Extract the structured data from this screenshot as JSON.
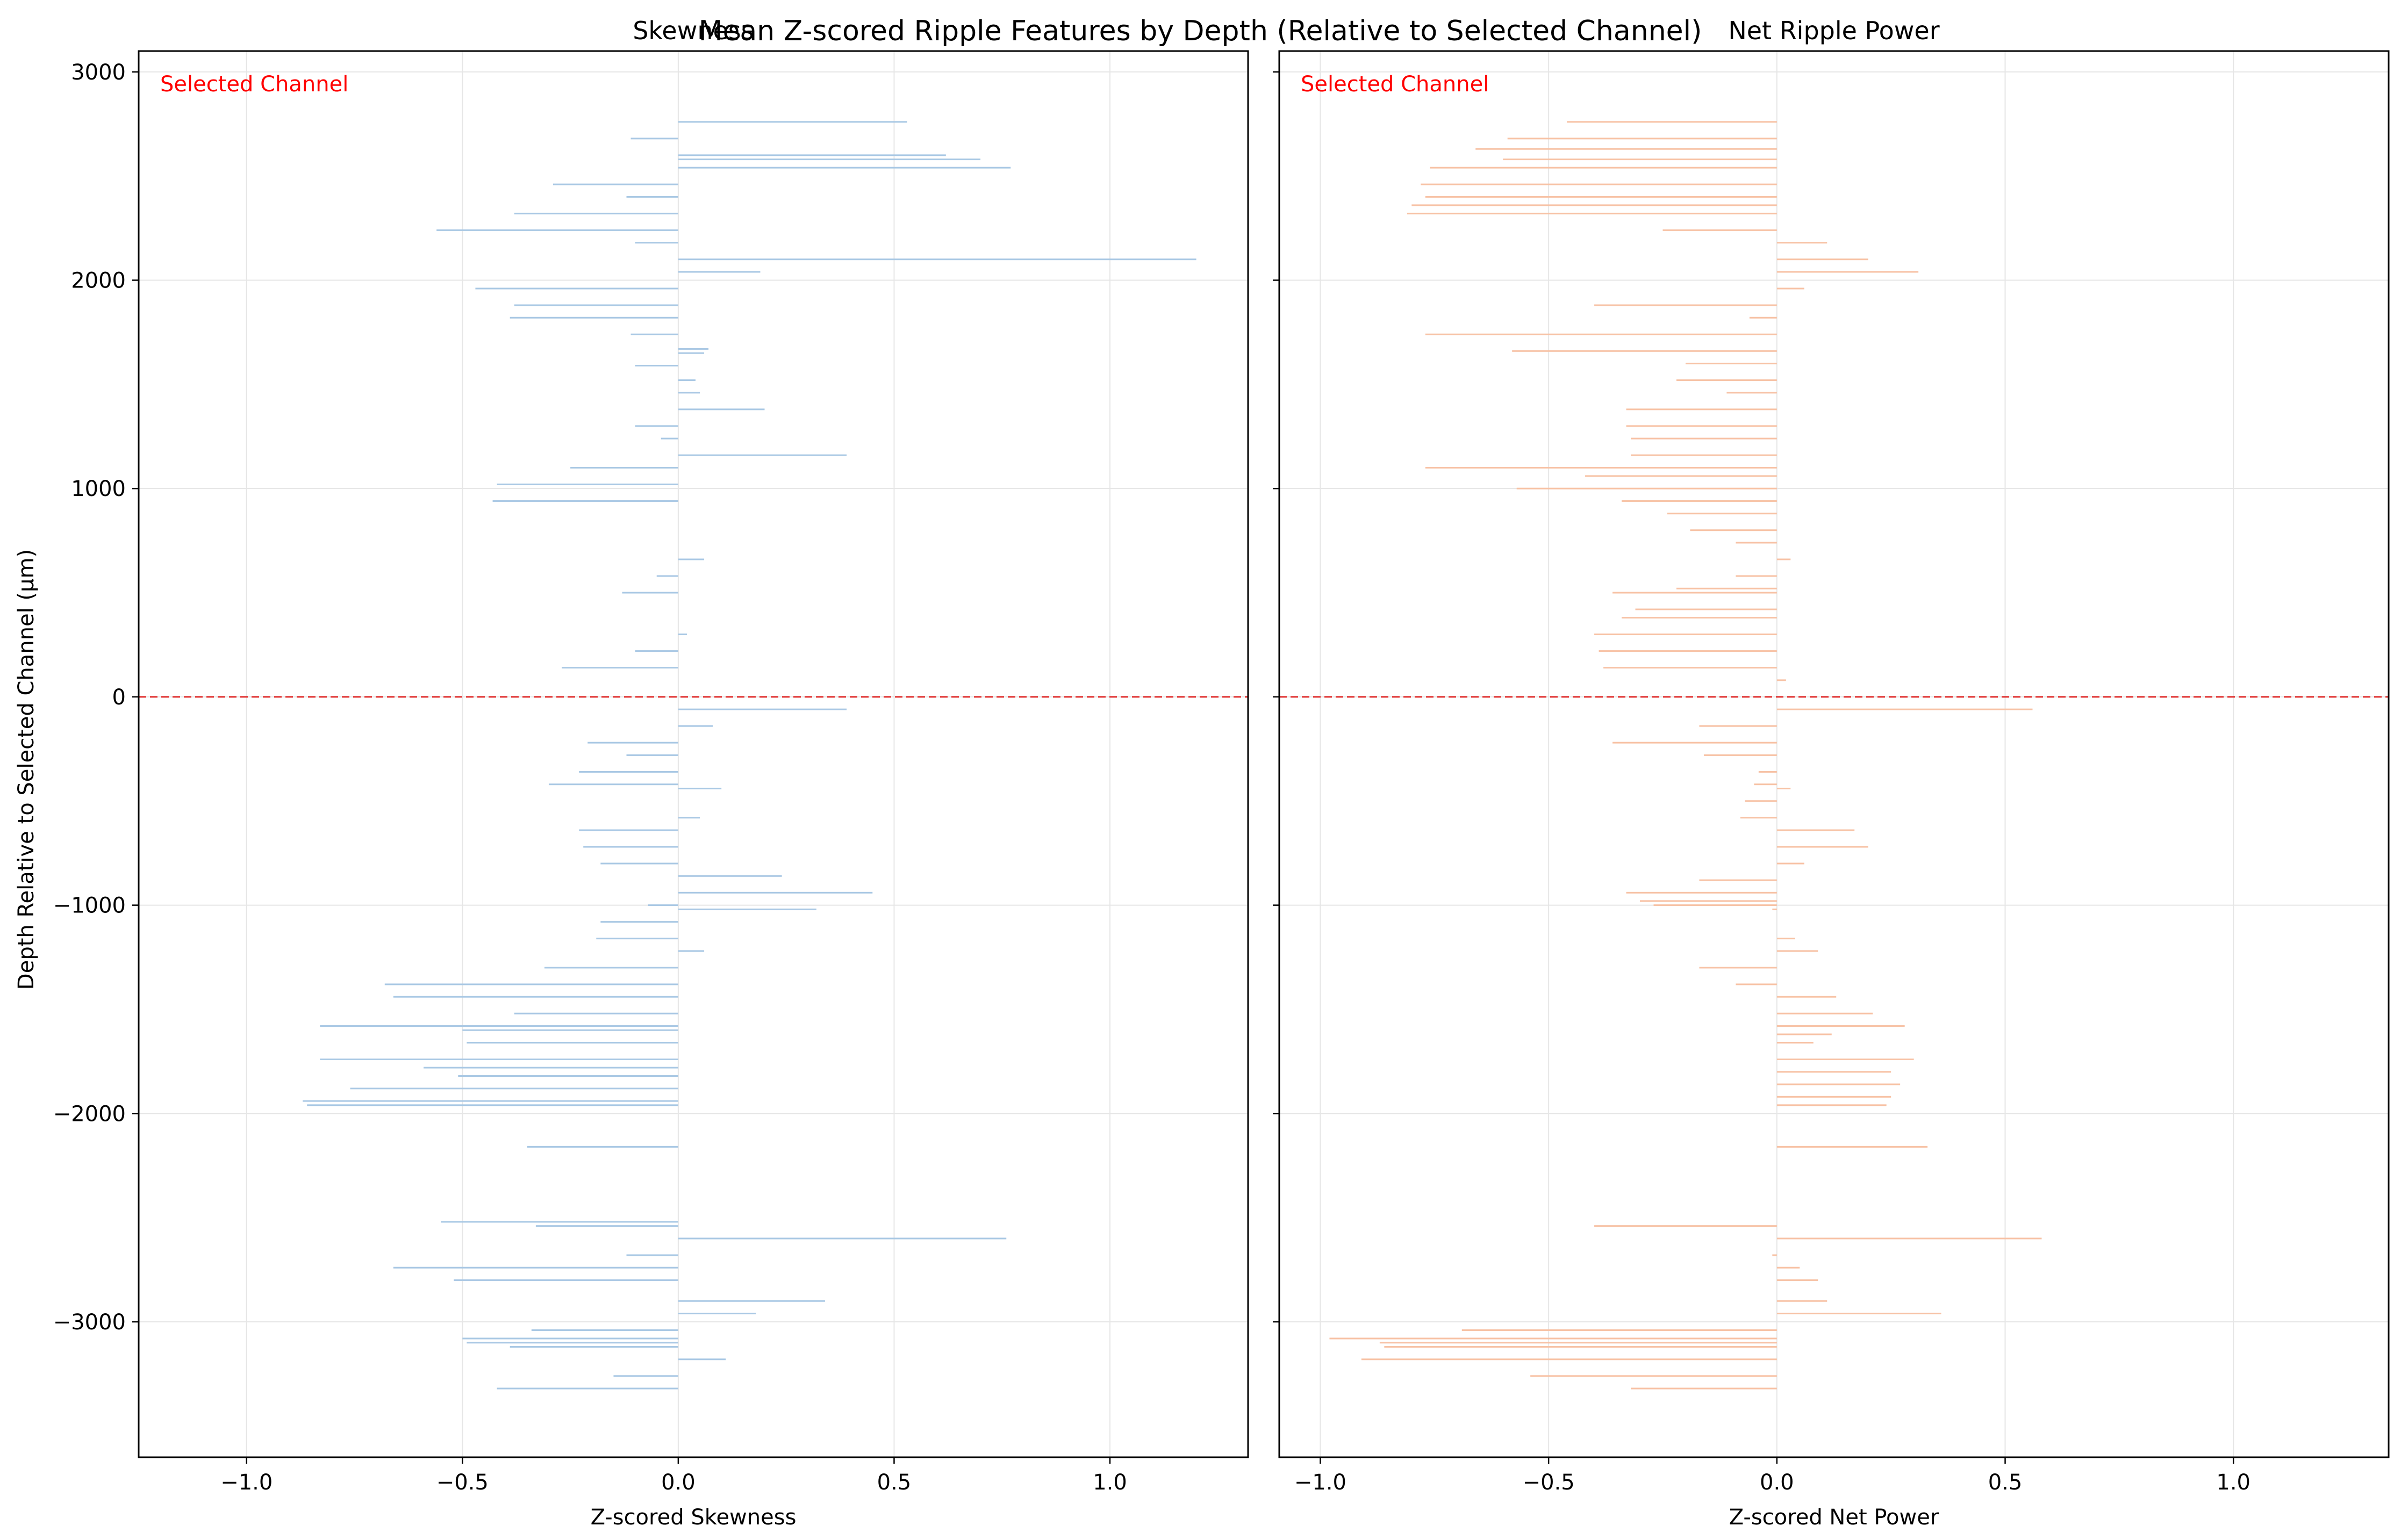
{
  "figure": {
    "suptitle": "Mean Z-scored Ripple Features by Depth (Relative to Selected Channel)",
    "ylabel": "Depth Relative to Selected Channel (μm)",
    "selected_label": "Selected Channel",
    "colors": {
      "skewness_bar": "#a9c8e4",
      "power_bar": "#f7c2a5",
      "selected_line": "#e0302f",
      "selected_text": "#ff0000",
      "grid": "#e6e6e6"
    }
  },
  "chart_data": [
    {
      "type": "bar",
      "orientation": "horizontal",
      "title": "Skewness",
      "xlabel": "Z-scored Skewness",
      "ylabel": "Depth Relative to Selected Channel (μm)",
      "xlim": [
        -1.25,
        1.32
      ],
      "ylim": [
        -3650,
        3100
      ],
      "xticks": [
        -1.0,
        -0.5,
        0.0,
        0.5,
        1.0
      ],
      "xtick_labels": [
        "−1.0",
        "−0.5",
        "0.0",
        "0.5",
        "1.0"
      ],
      "yticks": [
        3000,
        2000,
        1000,
        0,
        -1000,
        -2000,
        -3000
      ],
      "ytick_labels": [
        "3000",
        "2000",
        "1000",
        "0",
        "−1000",
        "−2000",
        "−3000"
      ],
      "grid": true,
      "selected_channel_depth": 0,
      "series": [
        {
          "y": [
            2760,
            2680,
            2600,
            2580,
            2540,
            2460,
            2400,
            2320,
            2240,
            2180,
            2100,
            2040,
            1960,
            1880,
            1820,
            1740,
            1670,
            1650,
            1590,
            1520,
            1460,
            1380,
            1300,
            1240,
            1160,
            1100,
            1020,
            940,
            660,
            580,
            500,
            300,
            220,
            140,
            -60,
            -140,
            -220,
            -280,
            -360,
            -420,
            -440,
            -580,
            -640,
            -720,
            -800,
            -860,
            -940,
            -1000,
            -1020,
            -1080,
            -1160,
            -1220,
            -1300,
            -1380,
            -1440,
            -1520,
            -1580,
            -1600,
            -1660,
            -1740,
            -1780,
            -1820,
            -1880,
            -1940,
            -1960,
            -2160,
            -2520,
            -2540,
            -2600,
            -2680,
            -2740,
            -2800,
            -2900,
            -2960,
            -3040,
            -3080,
            -3100,
            -3120,
            -3180,
            -3260,
            -3320
          ],
          "values": [
            0.53,
            -0.11,
            0.62,
            0.7,
            0.77,
            -0.29,
            -0.12,
            -0.38,
            -0.56,
            -0.1,
            1.2,
            0.19,
            -0.47,
            -0.38,
            -0.39,
            -0.11,
            0.07,
            0.06,
            -0.1,
            0.04,
            0.05,
            0.2,
            -0.1,
            -0.04,
            0.39,
            -0.25,
            -0.42,
            -0.43,
            0.06,
            -0.05,
            -0.13,
            0.02,
            -0.1,
            -0.27,
            0.39,
            0.08,
            -0.21,
            -0.12,
            -0.23,
            -0.3,
            0.1,
            0.05,
            -0.23,
            -0.22,
            -0.18,
            0.24,
            0.45,
            -0.07,
            0.32,
            -0.18,
            -0.19,
            0.06,
            -0.31,
            -0.68,
            -0.66,
            -0.38,
            -0.83,
            -0.5,
            -0.49,
            -0.83,
            -0.59,
            -0.51,
            -0.76,
            -0.87,
            -0.86,
            -0.35,
            -0.55,
            -0.33,
            0.76,
            -0.12,
            -0.66,
            -0.52,
            0.34,
            0.18,
            -0.34,
            -0.5,
            -0.49,
            -0.39,
            0.11,
            -0.15,
            -0.42
          ]
        }
      ]
    },
    {
      "type": "bar",
      "orientation": "horizontal",
      "title": "Net Ripple Power",
      "xlabel": "Z-scored Net Power",
      "xlim": [
        -1.09,
        1.34
      ],
      "ylim": [
        -3650,
        3100
      ],
      "xticks": [
        -1.0,
        -0.5,
        0.0,
        0.5,
        1.0
      ],
      "xtick_labels": [
        "−1.0",
        "−0.5",
        "0.0",
        "0.5",
        "1.0"
      ],
      "yticks": [
        3000,
        2000,
        1000,
        0,
        -1000,
        -2000,
        -3000
      ],
      "grid": true,
      "selected_channel_depth": 0,
      "series": [
        {
          "y": [
            2760,
            2680,
            2630,
            2580,
            2540,
            2460,
            2400,
            2360,
            2320,
            2240,
            2180,
            2100,
            2040,
            1960,
            1880,
            1820,
            1740,
            1660,
            1600,
            1520,
            1460,
            1380,
            1300,
            1240,
            1160,
            1100,
            1060,
            1000,
            940,
            880,
            800,
            740,
            660,
            580,
            520,
            500,
            420,
            380,
            300,
            220,
            140,
            80,
            -60,
            -140,
            -220,
            -280,
            -360,
            -420,
            -440,
            -500,
            -580,
            -640,
            -720,
            -800,
            -880,
            -940,
            -980,
            -1000,
            -1020,
            -1160,
            -1220,
            -1300,
            -1380,
            -1440,
            -1520,
            -1580,
            -1620,
            -1660,
            -1740,
            -1800,
            -1860,
            -1920,
            -1960,
            -2160,
            -2540,
            -2600,
            -2680,
            -2740,
            -2800,
            -2900,
            -2960,
            -3040,
            -3080,
            -3100,
            -3120,
            -3180,
            -3260,
            -3320
          ],
          "values": [
            -0.46,
            -0.59,
            -0.66,
            -0.6,
            -0.76,
            -0.78,
            -0.77,
            -0.8,
            -0.81,
            -0.25,
            0.11,
            0.2,
            0.31,
            0.06,
            -0.4,
            -0.06,
            -0.77,
            -0.58,
            -0.2,
            -0.22,
            -0.11,
            -0.33,
            -0.33,
            -0.32,
            -0.32,
            -0.77,
            -0.42,
            -0.57,
            -0.34,
            -0.24,
            -0.19,
            -0.09,
            0.03,
            -0.09,
            -0.22,
            -0.36,
            -0.31,
            -0.34,
            -0.4,
            -0.39,
            -0.38,
            0.02,
            0.56,
            -0.17,
            -0.36,
            -0.16,
            -0.04,
            -0.05,
            0.03,
            -0.07,
            -0.08,
            0.17,
            0.2,
            0.06,
            -0.17,
            -0.33,
            -0.3,
            -0.27,
            -0.01,
            0.04,
            0.09,
            -0.17,
            -0.09,
            0.13,
            0.21,
            0.28,
            0.12,
            0.08,
            0.3,
            0.25,
            0.27,
            0.25,
            0.24,
            0.33,
            -0.4,
            0.58,
            -0.01,
            0.05,
            0.09,
            0.11,
            0.36,
            -0.69,
            -0.98,
            -0.87,
            -0.86,
            -0.91,
            -0.54,
            -0.32
          ]
        }
      ]
    }
  ]
}
